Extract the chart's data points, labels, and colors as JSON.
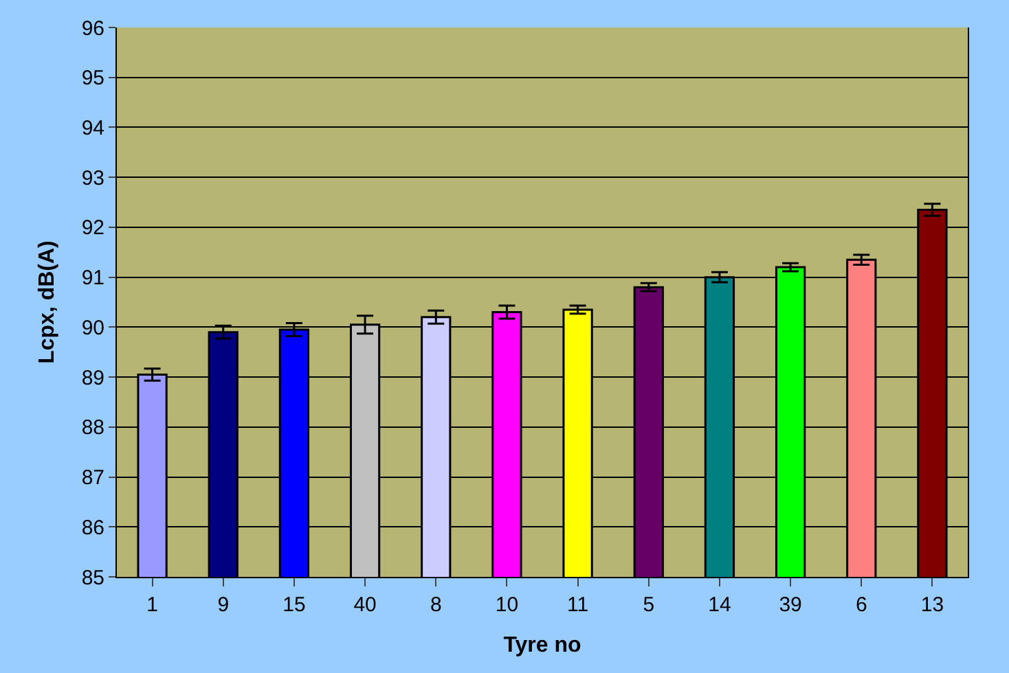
{
  "chart_data": {
    "type": "bar",
    "xlabel": "Tyre no",
    "ylabel": "Lcpx, dB(A)",
    "categories": [
      "1",
      "9",
      "15",
      "40",
      "8",
      "10",
      "11",
      "5",
      "14",
      "39",
      "6",
      "13"
    ],
    "values": [
      89.05,
      89.9,
      89.95,
      90.05,
      90.2,
      90.3,
      90.35,
      90.8,
      91.0,
      91.2,
      91.35,
      92.35
    ],
    "errors": [
      0.12,
      0.13,
      0.13,
      0.18,
      0.13,
      0.13,
      0.08,
      0.08,
      0.1,
      0.08,
      0.1,
      0.12
    ],
    "colors": [
      "#9999ff",
      "#000080",
      "#0000ff",
      "#c0c0c0",
      "#ccccff",
      "#ff00ff",
      "#ffff00",
      "#660066",
      "#008080",
      "#00ff00",
      "#ff8080",
      "#800000"
    ],
    "ylim": [
      85,
      96
    ],
    "yticks": [
      85,
      86,
      87,
      88,
      89,
      90,
      91,
      92,
      93,
      94,
      95,
      96
    ],
    "grid": "y"
  }
}
